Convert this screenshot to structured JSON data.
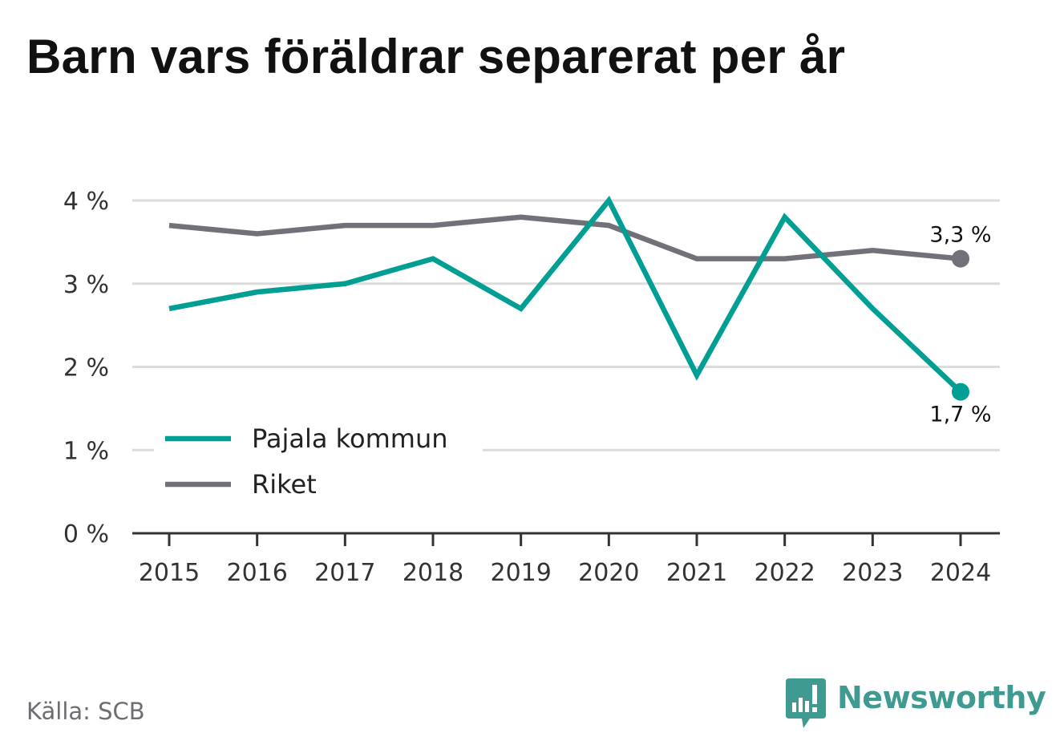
{
  "title": "Barn vars föräldrar separerat per år",
  "source": "Källa: SCB",
  "brand": {
    "name": "Newsworthy",
    "icon": "newsworthy-bar-chart-speech-bubble-icon",
    "color": "#3f9b91"
  },
  "chart_data": {
    "type": "line",
    "title": "Barn vars föräldrar separerat per år",
    "xlabel": "",
    "ylabel": "",
    "x": [
      "2015",
      "2016",
      "2017",
      "2018",
      "2019",
      "2020",
      "2021",
      "2022",
      "2023",
      "2024"
    ],
    "series": [
      {
        "name": "Pajala kommun",
        "color": "#009e93",
        "values": [
          2.7,
          2.9,
          3.0,
          3.3,
          2.7,
          4.0,
          1.9,
          3.8,
          2.7,
          1.7
        ],
        "end_label": "1,7 %"
      },
      {
        "name": "Riket",
        "color": "#727179",
        "values": [
          3.7,
          3.6,
          3.7,
          3.7,
          3.8,
          3.7,
          3.3,
          3.3,
          3.4,
          3.3
        ],
        "end_label": "3,3 %"
      }
    ],
    "ylim": [
      0,
      4
    ],
    "yticks": [
      0,
      1,
      2,
      3,
      4
    ],
    "ytick_labels": [
      "0 %",
      "1 %",
      "2 %",
      "3 %",
      "4 %"
    ],
    "grid": true,
    "legend": "bottom-left"
  }
}
